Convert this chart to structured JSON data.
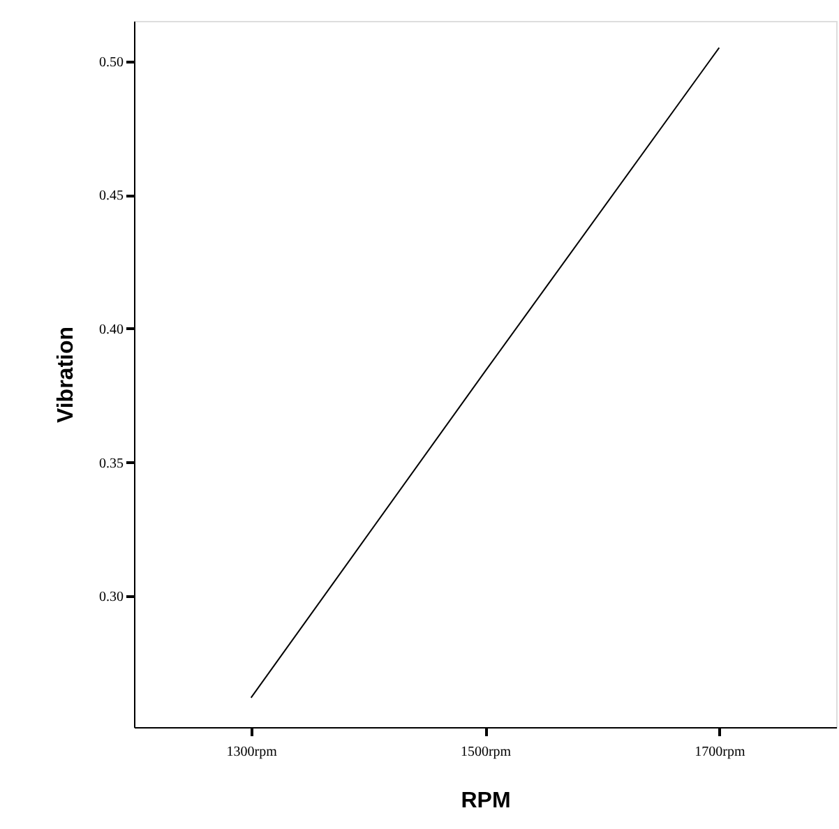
{
  "chart_data": {
    "type": "line",
    "xlabel": "RPM",
    "ylabel": "Vibration",
    "categories": [
      "1300rpm",
      "1500rpm",
      "1700rpm"
    ],
    "series": [
      {
        "color": "#000000",
        "values": [
          0.262,
          0.384,
          0.505
        ]
      }
    ],
    "ylim": [
      0.251,
      0.515
    ],
    "yticks": [
      {
        "value": 0.3,
        "label": "0.30"
      },
      0.35,
      {
        "value": 0.4,
        "label": "0.40"
      },
      0.45,
      {
        "value": 0.5,
        "label": "0.50"
      }
    ],
    "grid": false,
    "marker": "none",
    "line_style": "solid"
  }
}
